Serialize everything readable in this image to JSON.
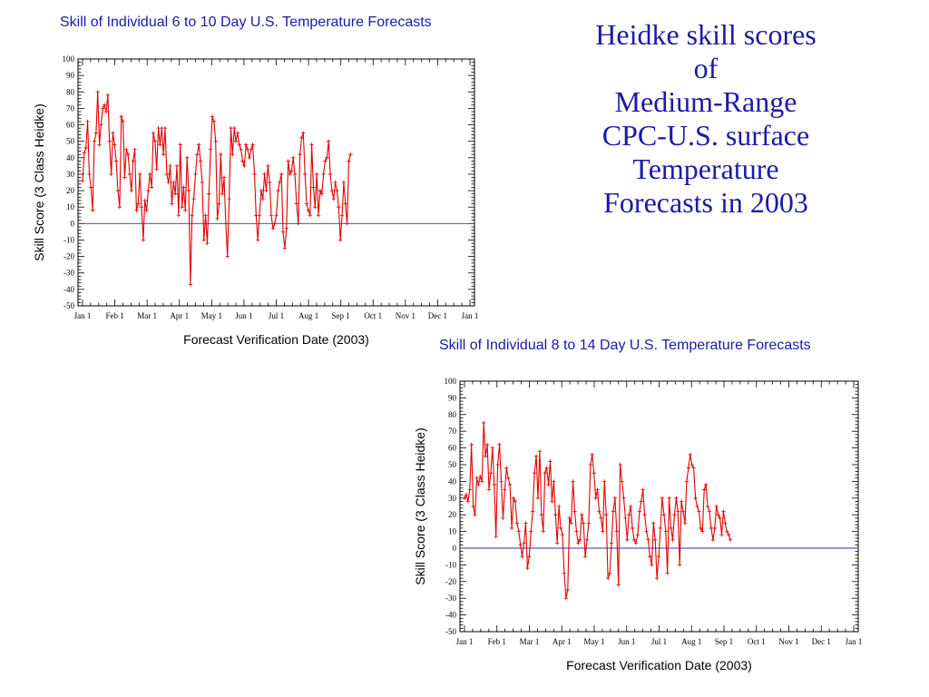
{
  "slide_title": {
    "lines": [
      "Heidke skill scores",
      "of",
      "Medium-Range",
      "CPC-U.S. surface",
      "Temperature",
      "Forecasts in 2003"
    ]
  },
  "colors": {
    "title": "#1a1aa8",
    "series": "#e00000",
    "zero_line": "#3333aa",
    "axis": "#000000"
  },
  "chart_data": [
    {
      "type": "line",
      "title": "Skill of Individual 6 to 10 Day U.S. Temperature Forecasts",
      "xlabel": "Forecast Verification Date (2003)",
      "ylabel": "Skill Score (3 Class Heidke)",
      "ylim": [
        -50,
        100
      ],
      "yticks": [
        100,
        90,
        80,
        70,
        60,
        50,
        40,
        30,
        20,
        10,
        0,
        -10,
        -20,
        -30,
        -40,
        -50
      ],
      "xticks": [
        "Jan 1",
        "Feb 1",
        "Mar 1",
        "Apr 1",
        "May 1",
        "Jun 1",
        "Jul 1",
        "Aug 1",
        "Sep 1",
        "Oct 1",
        "Nov 1",
        "Dec 1",
        "Jan 1"
      ],
      "reference_line": 0,
      "grid": false,
      "series": [
        {
          "values": [
            26,
            43,
            46,
            62,
            30,
            22,
            8,
            50,
            55,
            80,
            48,
            60,
            70,
            72,
            68,
            78,
            50,
            30,
            55,
            48,
            38,
            20,
            10,
            65,
            62,
            28,
            45,
            42,
            30,
            20,
            38,
            45,
            8,
            12,
            30,
            10,
            -10,
            14,
            8,
            20,
            30,
            22,
            55,
            50,
            33,
            58,
            48,
            58,
            42,
            58,
            30,
            25,
            35,
            12,
            25,
            18,
            35,
            5,
            48,
            10,
            22,
            8,
            40,
            20,
            -37,
            5,
            15,
            30,
            42,
            48,
            38,
            25,
            -10,
            5,
            -12,
            18,
            45,
            65,
            62,
            50,
            3,
            12,
            42,
            18,
            28,
            0,
            -20,
            15,
            58,
            42,
            58,
            50,
            55,
            48,
            45,
            38,
            35,
            48,
            45,
            40,
            45,
            48,
            30,
            5,
            -10,
            5,
            20,
            15,
            30,
            20,
            35,
            25,
            5,
            -3,
            0,
            5,
            20,
            25,
            30,
            -5,
            -15,
            -3,
            38,
            30,
            32,
            40,
            30,
            12,
            0,
            42,
            52,
            55,
            30,
            12,
            8,
            5,
            48,
            22,
            10,
            30,
            5,
            20,
            18,
            30,
            38,
            40,
            50,
            30,
            20,
            15,
            25,
            20,
            10,
            -10,
            5,
            25,
            12,
            0,
            38,
            42
          ]
        }
      ]
    },
    {
      "type": "line",
      "title": "Skill of Individual 8 to 14 Day U.S. Temperature Forecasts",
      "xlabel": "Forecast Verification Date (2003)",
      "ylabel": "Skill Score (3 Class Heidke)",
      "ylim": [
        -50,
        100
      ],
      "yticks": [
        100,
        90,
        80,
        70,
        60,
        50,
        40,
        30,
        20,
        10,
        0,
        -10,
        -20,
        -30,
        -40,
        -50
      ],
      "xticks": [
        "Jan 1",
        "Feb 1",
        "Mar 1",
        "Apr 1",
        "May 1",
        "Jun 1",
        "Jul 1",
        "Aug 1",
        "Sep 1",
        "Oct 1",
        "Nov 1",
        "Dec 1",
        "Jan 1"
      ],
      "reference_line": 0,
      "grid": false,
      "series": [
        {
          "values": [
            30,
            32,
            28,
            35,
            62,
            25,
            20,
            42,
            38,
            43,
            40,
            75,
            55,
            62,
            35,
            45,
            60,
            38,
            7,
            50,
            62,
            40,
            18,
            35,
            48,
            42,
            38,
            12,
            30,
            28,
            15,
            10,
            2,
            -5,
            3,
            15,
            -12,
            -5,
            10,
            22,
            45,
            55,
            30,
            58,
            20,
            10,
            45,
            48,
            38,
            52,
            28,
            40,
            20,
            3,
            25,
            12,
            8,
            -15,
            -30,
            -25,
            18,
            15,
            40,
            22,
            10,
            3,
            5,
            20,
            15,
            -5,
            5,
            15,
            50,
            56,
            45,
            30,
            35,
            22,
            18,
            10,
            40,
            20,
            -18,
            -15,
            3,
            22,
            30,
            10,
            -22,
            50,
            40,
            30,
            18,
            5,
            20,
            25,
            12,
            5,
            3,
            8,
            22,
            28,
            35,
            20,
            10,
            5,
            -5,
            -10,
            15,
            5,
            -18,
            -5,
            12,
            30,
            20,
            10,
            -15,
            30,
            12,
            5,
            20,
            30,
            22,
            -10,
            28,
            22,
            15,
            40,
            48,
            56,
            50,
            48,
            30,
            25,
            22,
            12,
            10,
            35,
            38,
            25,
            22,
            12,
            5,
            12,
            25,
            20,
            18,
            8,
            22,
            15,
            10,
            8,
            5
          ]
        }
      ]
    }
  ]
}
